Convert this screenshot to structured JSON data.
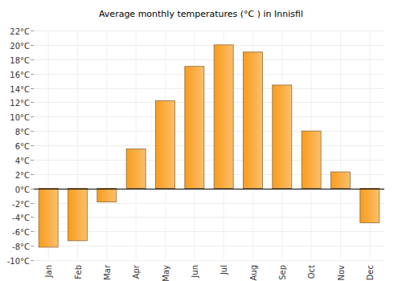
{
  "chart_data": {
    "type": "bar",
    "title": "Average monthly temperatures (°C ) in Innisfil",
    "categories": [
      "Jan",
      "Feb",
      "Mar",
      "Apr",
      "May",
      "Jun",
      "Jul",
      "Aug",
      "Sep",
      "Oct",
      "Nov",
      "Dec"
    ],
    "values": [
      -8.2,
      -7.3,
      -1.9,
      5.5,
      12.2,
      17,
      20,
      19,
      14.4,
      8,
      2.3,
      -4.8
    ],
    "color": "#f99c1c",
    "ylim": [
      -10,
      22
    ],
    "yticks": [
      {
        "value": -10,
        "label": "-10°C"
      },
      {
        "value": -8,
        "label": "-8°C"
      },
      {
        "value": -6,
        "label": "-6°C"
      },
      {
        "value": -4,
        "label": "-4°C"
      },
      {
        "value": -2,
        "label": "-2°C"
      },
      {
        "value": 0,
        "label": "0°C"
      },
      {
        "value": 2,
        "label": "2°C"
      },
      {
        "value": 4,
        "label": "4°C"
      },
      {
        "value": 6,
        "label": "6°C"
      },
      {
        "value": 8,
        "label": "8°C"
      },
      {
        "value": 10,
        "label": "10°C"
      },
      {
        "value": 12,
        "label": "12°C"
      },
      {
        "value": 14,
        "label": "14°C"
      },
      {
        "value": 16,
        "label": "16°C"
      },
      {
        "value": 18,
        "label": "18°C"
      },
      {
        "value": 20,
        "label": "20°C"
      },
      {
        "value": 22,
        "label": "22°C"
      }
    ],
    "grid": true
  }
}
